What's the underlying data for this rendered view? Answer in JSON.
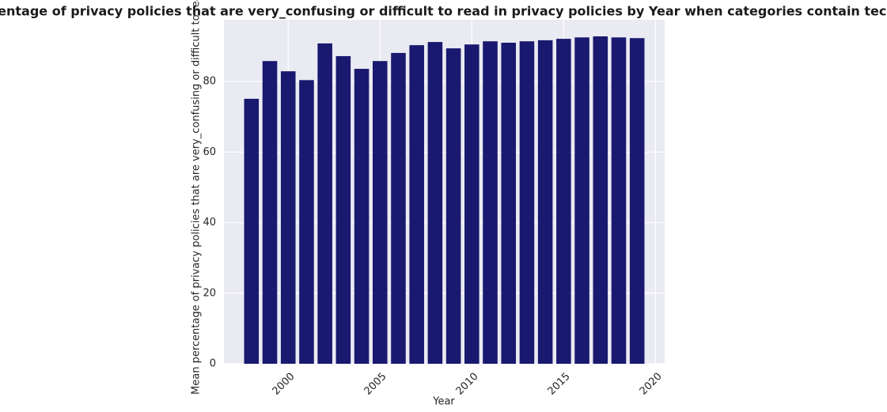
{
  "chart_data": {
    "type": "bar",
    "title": "Mean percentage of privacy policies that are very_confusing or difficult to read in privacy policies by Year when categories contain tech or media",
    "x_label": "Year",
    "y_label": "Mean percentage of privacy policies that are very_confusing or difficult to read",
    "x": [
      1998,
      1999,
      2000,
      2001,
      2002,
      2003,
      2004,
      2005,
      2006,
      2007,
      2008,
      2009,
      2010,
      2011,
      2012,
      2013,
      2014,
      2015,
      2016,
      2017,
      2018,
      2019
    ],
    "values": [
      75.1,
      85.8,
      82.9,
      80.4,
      90.8,
      87.2,
      83.6,
      85.8,
      88.1,
      90.3,
      91.2,
      89.4,
      90.5,
      91.4,
      91.0,
      91.4,
      91.7,
      92.1,
      92.5,
      92.8,
      92.5,
      92.3
    ],
    "color": "#191970",
    "xlim": [
      1996.5,
      2020.5
    ],
    "xticks": [
      2000,
      2005,
      2010,
      2015,
      2020
    ],
    "ylim": [
      0,
      97.5
    ],
    "yticks": [
      0,
      20,
      40,
      60,
      80
    ],
    "grid": true
  }
}
